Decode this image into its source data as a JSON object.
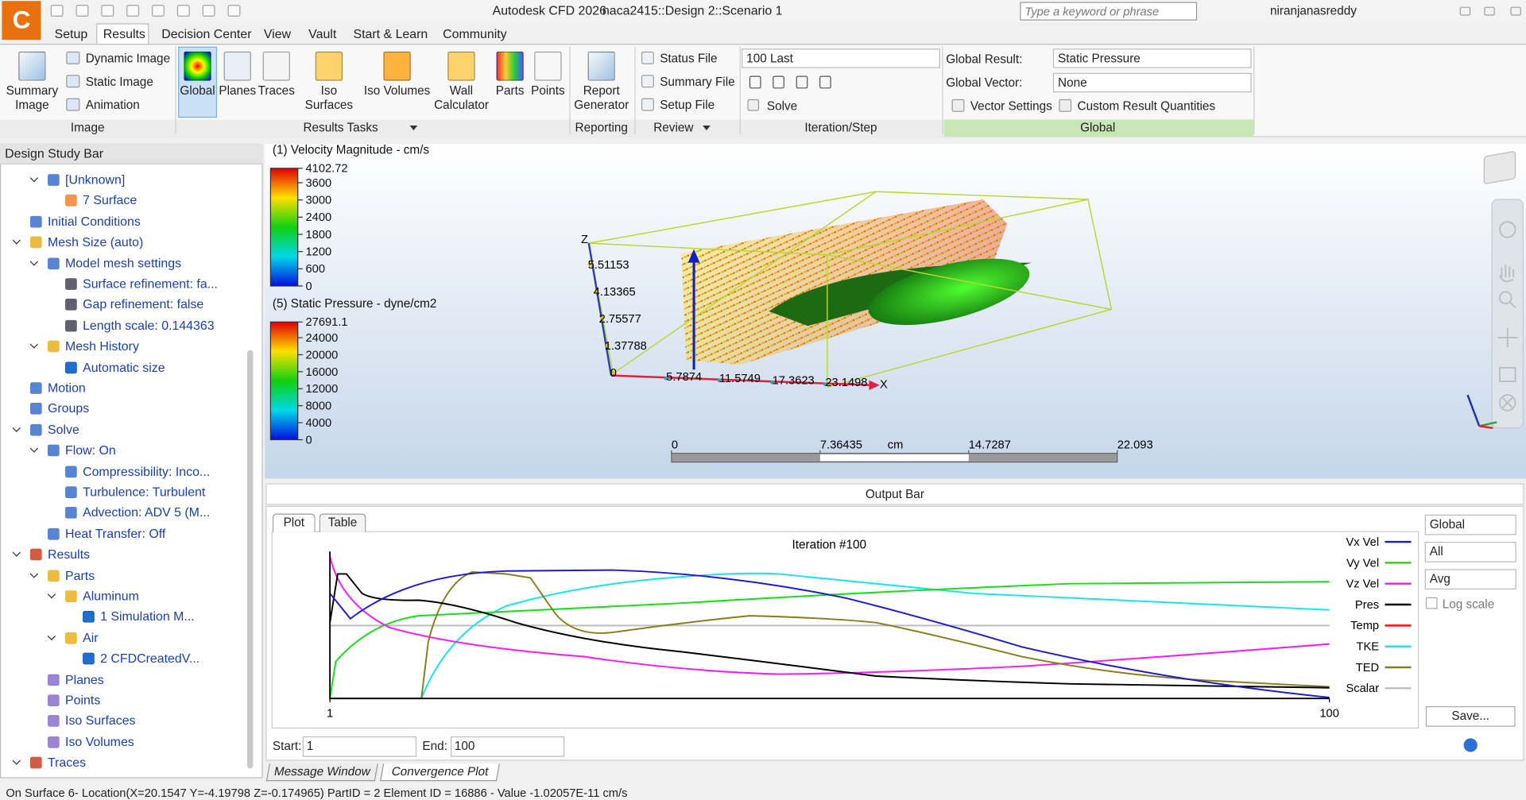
{
  "title_bar": {
    "app_icon": "C",
    "app": "Autodesk CFD 2026",
    "document": "naca2415::Design 2::Scenario 1",
    "search_placeholder": "Type a keyword or phrase",
    "user": "niranjanasreddy"
  },
  "menu_tabs": [
    "Setup",
    "Results",
    "Decision Center",
    "View",
    "Vault",
    "Start & Learn",
    "Community"
  ],
  "ribbon": {
    "image": {
      "big": "Summary Image",
      "small": [
        "Dynamic Image",
        "Static Image",
        "Animation"
      ],
      "label": "Image"
    },
    "results_tasks": {
      "buttons": [
        "Global",
        "Planes",
        "Traces",
        "Iso Surfaces",
        "Iso Volumes",
        "Wall Calculator",
        "Parts",
        "Points"
      ],
      "label": "Results Tasks"
    },
    "reporting": {
      "button": "Report Generator",
      "label": "Reporting"
    },
    "review": {
      "items": [
        "Status File",
        "Summary File",
        "Setup File"
      ],
      "label": "Review"
    },
    "iteration": {
      "step": "100 Last",
      "solve": "Solve",
      "label": "Iteration/Step"
    },
    "global": {
      "result_label": "Global Result:",
      "result": "Static Pressure",
      "vector_label": "Global Vector:",
      "vector": "None",
      "vector_settings": "Vector Settings",
      "custom": "Custom Result Quantities",
      "label": "Global"
    }
  },
  "design_study_bar": {
    "title": "Design Study Bar",
    "items": [
      {
        "text": "[Unknown]"
      },
      {
        "text": "7 Surface"
      },
      {
        "text": "Initial Conditions"
      },
      {
        "text": "Mesh Size (auto)"
      },
      {
        "text": "Model mesh settings"
      },
      {
        "text": "Surface refinement: fa..."
      },
      {
        "text": "Gap refinement: false"
      },
      {
        "text": "Length scale: 0.144363"
      },
      {
        "text": "Mesh History"
      },
      {
        "text": "Automatic size",
        "checked": true
      },
      {
        "text": "Motion"
      },
      {
        "text": "Groups"
      },
      {
        "text": "Solve"
      },
      {
        "text": "Flow: On"
      },
      {
        "text": "Compressibility: Inco..."
      },
      {
        "text": "Turbulence: Turbulent"
      },
      {
        "text": "Advection: ADV 5 (M..."
      },
      {
        "text": "Heat Transfer: Off"
      },
      {
        "text": "Results"
      },
      {
        "text": "Parts"
      },
      {
        "text": "Aluminum"
      },
      {
        "text": "1 Simulation M...",
        "checked": true
      },
      {
        "text": "Air"
      },
      {
        "text": "2 CFDCreatedV...",
        "checked": true
      },
      {
        "text": "Planes"
      },
      {
        "text": "Points"
      },
      {
        "text": "Iso Surfaces"
      },
      {
        "text": "Iso Volumes"
      },
      {
        "text": "Traces"
      }
    ]
  },
  "viewport": {
    "velocity_legend": {
      "title": "(1) Velocity Magnitude - cm/s",
      "ticks": [
        4102.72,
        3600,
        3000,
        2400,
        1800,
        1200,
        600,
        0
      ]
    },
    "pressure_legend": {
      "title": "(5) Static Pressure - dyne/cm2",
      "ticks": [
        27691.1,
        24000,
        20000,
        16000,
        12000,
        8000,
        4000,
        0
      ]
    },
    "z_axis": {
      "name": "Z",
      "ticks": [
        5.51153,
        4.13365,
        2.75577,
        1.37788,
        0
      ]
    },
    "x_axis": {
      "name": "X",
      "ticks": [
        5.7874,
        11.5749,
        17.3623,
        23.1498
      ]
    },
    "scale_bar": {
      "unit": "cm",
      "ticks": [
        0,
        7.36435,
        14.7287,
        22.093
      ]
    }
  },
  "output_bar": {
    "title": "Output Bar",
    "tabs": [
      "Plot",
      "Table"
    ],
    "plot_title": "Iteration #100",
    "xticks": [
      1,
      100
    ],
    "legend": [
      {
        "name": "Vx Vel",
        "color": "#1a1ad8"
      },
      {
        "name": "Vy Vel",
        "color": "#14e014"
      },
      {
        "name": "Vz Vel",
        "color": "#ff14ff"
      },
      {
        "name": "Pres",
        "color": "#000000"
      },
      {
        "name": "Temp",
        "color": "#ff1010"
      },
      {
        "name": "TKE",
        "color": "#14e4f0"
      },
      {
        "name": "TED",
        "color": "#8a7c1c"
      },
      {
        "name": "Scalar",
        "color": "#bdbdbd"
      }
    ],
    "dropdowns": [
      "Global",
      "All",
      "Avg"
    ],
    "log_scale": {
      "label": "Log scale",
      "checked": false
    },
    "save": "Save...",
    "start_label": "Start:",
    "start": "1",
    "end_label": "End:",
    "end": "100"
  },
  "bottom_tabs": [
    "Message Window",
    "Convergence Plot"
  ],
  "status": "On Surface 6- Location(X=20.1547 Y=-4.19798 Z=-0.174965) PartID = 2 Element ID = 16886 - Value -1.02057E-11  cm/s"
}
